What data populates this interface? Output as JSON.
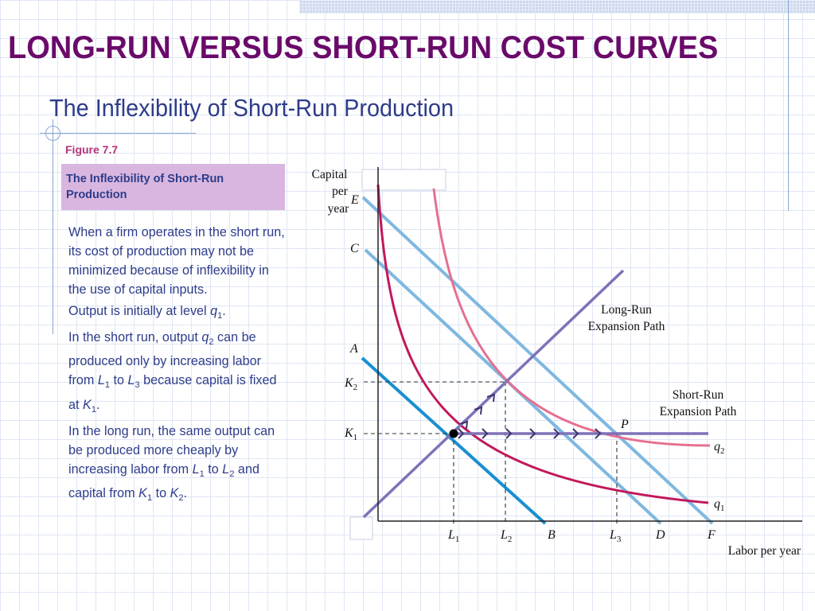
{
  "slide": {
    "title": "LONG-RUN VERSUS SHORT-RUN COST CURVES",
    "subtitle": "The Inflexibility of Short-Run Production",
    "figure_label": "Figure 7.7",
    "caption": "The Inflexibility of Short-Run Production",
    "bullets": [
      [
        {
          "t": "When a firm operates in the short run, its cost of production may not be minimized because of inflexibility in the use of capital inputs."
        }
      ],
      [
        {
          "t": "Output is initially at level "
        },
        {
          "t": "q",
          "i": true
        },
        {
          "t": "1",
          "sub": true
        },
        {
          "t": "."
        }
      ],
      [
        {
          "t": "In the short run, output "
        },
        {
          "t": "q",
          "i": true
        },
        {
          "t": "2",
          "sub": true
        },
        {
          "t": " can be produced only by increasing labor from "
        },
        {
          "t": "L",
          "i": true
        },
        {
          "t": "1",
          "sub": true
        },
        {
          "t": " to "
        },
        {
          "t": "L",
          "i": true
        },
        {
          "t": "3",
          "sub": true
        },
        {
          "t": " because capital is fixed at "
        },
        {
          "t": "K",
          "i": true
        },
        {
          "t": "1",
          "sub": true
        },
        {
          "t": "."
        }
      ],
      [
        {
          "t": "In the long run, the same output can be produced more cheaply by increasing labor from "
        },
        {
          "t": "L",
          "i": true
        },
        {
          "t": "1",
          "sub": true
        },
        {
          "t": " to "
        },
        {
          "t": "L",
          "i": true
        },
        {
          "t": "2",
          "sub": true
        },
        {
          "t": " and capital from "
        },
        {
          "t": "K",
          "i": true
        },
        {
          "t": "1",
          "sub": true
        },
        {
          "t": " to "
        },
        {
          "t": "K",
          "i": true
        },
        {
          "t": "2",
          "sub": true
        },
        {
          "t": "."
        }
      ]
    ]
  },
  "diagram": {
    "y_axis_label": [
      "Capital",
      "per",
      "year"
    ],
    "x_axis_label": "Labor per year",
    "isocost_labels_y": [
      "E",
      "C",
      "A"
    ],
    "isocost_labels_x": [
      "B",
      "D",
      "F"
    ],
    "capital_ticks": [
      {
        "main": "K",
        "sub": "2"
      },
      {
        "main": "K",
        "sub": "1"
      }
    ],
    "labor_ticks": [
      {
        "main": "L",
        "sub": "1"
      },
      {
        "main": "L",
        "sub": "2"
      },
      {
        "main": "L",
        "sub": "3"
      }
    ],
    "point_label": "P",
    "isoquant_labels": [
      {
        "main": "q",
        "sub": "2"
      },
      {
        "main": "q",
        "sub": "1"
      }
    ],
    "long_run_label": [
      "Long-Run",
      "Expansion Path"
    ],
    "short_run_label": [
      "Short-Run",
      "Expansion Path"
    ],
    "colors": {
      "isocost": "#7fb8e0",
      "isocost_low": "#1a8fd0",
      "isoquant_q1": "#c2185b",
      "isoquant_q2": "#e57090",
      "expansion_path": "#7e72b8",
      "title": "#6a0a6a",
      "text": "#2e3c8a",
      "caption_bg": "#d8b6df",
      "figure_label": "#b0357a"
    }
  }
}
